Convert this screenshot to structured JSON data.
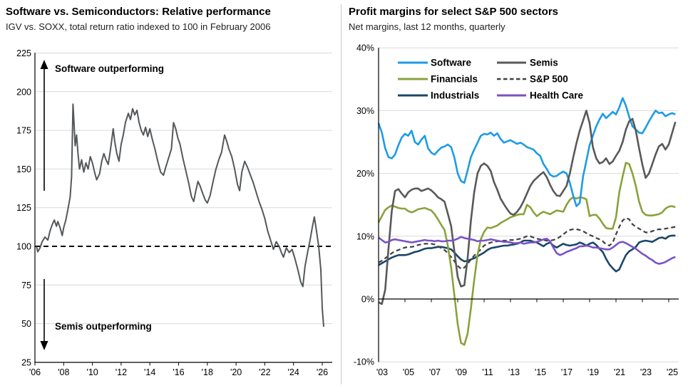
{
  "chart_data": [
    {
      "type": "line",
      "title": "Software vs. Semiconductors: Relative performance",
      "subtitle": "IGV vs. SOXX, total return ratio indexed to 100 in February 2006",
      "ylim": [
        25,
        225
      ],
      "xlim": [
        2006,
        2026.5
      ],
      "grid": true,
      "grid_values": [
        225,
        200,
        175,
        150,
        125,
        75,
        50
      ],
      "yticks": [
        225,
        200,
        175,
        150,
        125,
        100,
        75,
        50,
        25
      ],
      "xticks": [
        {
          "label": "'06",
          "year": 2006
        },
        {
          "label": "'08",
          "year": 2008
        },
        {
          "label": "'10",
          "year": 2010
        },
        {
          "label": "'12",
          "year": 2012
        },
        {
          "label": "'14",
          "year": 2014
        },
        {
          "label": "'16",
          "year": 2016
        },
        {
          "label": "'18",
          "year": 2018
        },
        {
          "label": "'20",
          "year": 2020
        },
        {
          "label": "'22",
          "year": 2022
        },
        {
          "label": "'24",
          "year": 2024
        },
        {
          "label": "'26",
          "year": 2026
        }
      ],
      "reference_line": {
        "value": 100,
        "style": "dashed",
        "color": "#000000"
      },
      "annotations": [
        {
          "text": "Software outperforming",
          "arrow": "up"
        },
        {
          "text": "Semis outperforming",
          "arrow": "down"
        }
      ],
      "series": [
        {
          "name": "IGV vs. SOXX total return ratio",
          "color": "#54585A",
          "x": [
            2006.1,
            2006.2,
            2006.35,
            2006.5,
            2006.7,
            2006.9,
            2007.05,
            2007.2,
            2007.35,
            2007.5,
            2007.6,
            2007.75,
            2007.9,
            2008.0,
            2008.15,
            2008.3,
            2008.45,
            2008.55,
            2008.65,
            2008.72,
            2008.8,
            2008.9,
            2009.0,
            2009.1,
            2009.25,
            2009.4,
            2009.55,
            2009.7,
            2009.85,
            2010.0,
            2010.15,
            2010.3,
            2010.5,
            2010.65,
            2010.8,
            2010.95,
            2011.1,
            2011.25,
            2011.45,
            2011.55,
            2011.7,
            2011.85,
            2012.0,
            2012.15,
            2012.3,
            2012.5,
            2012.65,
            2012.8,
            2012.95,
            2013.1,
            2013.25,
            2013.4,
            2013.55,
            2013.7,
            2013.85,
            2014.0,
            2014.15,
            2014.35,
            2014.55,
            2014.75,
            2014.95,
            2015.1,
            2015.3,
            2015.5,
            2015.65,
            2015.8,
            2015.95,
            2016.1,
            2016.3,
            2016.5,
            2016.7,
            2016.9,
            2017.05,
            2017.2,
            2017.35,
            2017.5,
            2017.65,
            2017.85,
            2018.0,
            2018.2,
            2018.4,
            2018.6,
            2018.8,
            2019.0,
            2019.2,
            2019.35,
            2019.5,
            2019.7,
            2019.9,
            2020.1,
            2020.25,
            2020.4,
            2020.6,
            2020.8,
            2021.0,
            2021.2,
            2021.4,
            2021.6,
            2021.8,
            2022.0,
            2022.2,
            2022.4,
            2022.6,
            2022.8,
            2023.0,
            2023.15,
            2023.3,
            2023.5,
            2023.7,
            2023.9,
            2024.1,
            2024.3,
            2024.5,
            2024.65,
            2024.8,
            2025.0,
            2025.15,
            2025.3,
            2025.45,
            2025.6,
            2025.75,
            2025.9,
            2026.0,
            2026.1
          ],
          "y": [
            100,
            96.5,
            99,
            103,
            106,
            104,
            110,
            114,
            117,
            113,
            116,
            112,
            107,
            112,
            117,
            124,
            132,
            145,
            192,
            180,
            165,
            172,
            160,
            150,
            156,
            148,
            154,
            150,
            158,
            154,
            148,
            143,
            147,
            155,
            160,
            156,
            153,
            162,
            176,
            168,
            160,
            155,
            166,
            172,
            180,
            186,
            182,
            189,
            185,
            188,
            180,
            175,
            172,
            177,
            171,
            176,
            170,
            163,
            155,
            148,
            146,
            151,
            157,
            163,
            180,
            176,
            170,
            166,
            157,
            149,
            141,
            132,
            129,
            136,
            142,
            139,
            135,
            130,
            128,
            133,
            142,
            150,
            156,
            161,
            172,
            168,
            163,
            158,
            150,
            140,
            136,
            148,
            155,
            151,
            146,
            141,
            135,
            129,
            124,
            118,
            110,
            104,
            98,
            103,
            100,
            96,
            93,
            99,
            96,
            98,
            92,
            85,
            77,
            74,
            87,
            97,
            104,
            112,
            119,
            110,
            100,
            85,
            60,
            48
          ]
        }
      ]
    },
    {
      "type": "line",
      "title": "Profit margins for select S&P 500 sectors",
      "subtitle": "Net margins, last 12 months, quarterly",
      "ylim": [
        -10,
        40
      ],
      "xlim": [
        2003,
        2025.75
      ],
      "grid": true,
      "grid_values": [
        40,
        30,
        20,
        10,
        -10
      ],
      "yticks": [
        {
          "label": "40%",
          "value": 40
        },
        {
          "label": "30%",
          "value": 30
        },
        {
          "label": "20%",
          "value": 20
        },
        {
          "label": "10%",
          "value": 10
        },
        {
          "label": "0%",
          "value": 0
        },
        {
          "label": "-10%",
          "value": -10
        }
      ],
      "xticks": [
        {
          "label": "'03",
          "year": 2003
        },
        {
          "label": "'05",
          "year": 2005
        },
        {
          "label": "'07",
          "year": 2007
        },
        {
          "label": "'09",
          "year": 2009
        },
        {
          "label": "'11",
          "year": 2011
        },
        {
          "label": "'13",
          "year": 2013
        },
        {
          "label": "'15",
          "year": 2015
        },
        {
          "label": "'17",
          "year": 2017
        },
        {
          "label": "'19",
          "year": 2019
        },
        {
          "label": "'21",
          "year": 2021
        },
        {
          "label": "'23",
          "year": 2023
        },
        {
          "label": "'25",
          "year": 2025
        }
      ],
      "x_start": 2003,
      "x_step": 0.25,
      "legend": {
        "position": "top-inside",
        "columns": [
          [
            "Software",
            "Financials",
            "Industrials"
          ],
          [
            "Semis",
            "S&P 500",
            "Health Care"
          ]
        ]
      },
      "draw_order": [
        4,
        3,
        2,
        0,
        1,
        5
      ],
      "series": [
        {
          "name": "Software",
          "color": "#1E9BE6",
          "dash": false,
          "values": [
            28.0,
            26.5,
            24.0,
            22.6,
            22.4,
            23.0,
            24.5,
            25.7,
            26.3,
            26.0,
            26.8,
            25.0,
            24.6,
            25.4,
            26.0,
            24.0,
            23.3,
            23.0,
            23.6,
            24.1,
            24.3,
            24.6,
            24.2,
            22.5,
            20.0,
            18.8,
            18.5,
            20.5,
            22.6,
            23.8,
            24.9,
            26.0,
            26.3,
            26.2,
            26.5,
            26.0,
            26.4,
            25.5,
            24.9,
            25.1,
            25.3,
            25.0,
            24.7,
            24.9,
            24.6,
            24.2,
            24.0,
            23.8,
            23.2,
            22.8,
            21.5,
            20.7,
            19.8,
            19.5,
            19.6,
            20.0,
            20.3,
            20.0,
            18.5,
            16.5,
            14.8,
            15.3,
            19.5,
            22.0,
            24.5,
            26.0,
            27.5,
            28.6,
            29.5,
            28.8,
            29.3,
            29.8,
            29.4,
            30.5,
            32.0,
            30.8,
            29.0,
            27.5,
            27.0,
            26.5,
            26.4,
            27.3,
            28.3,
            29.2,
            30.0,
            29.6,
            29.7,
            29.1,
            29.4,
            29.6,
            29.4
          ]
        },
        {
          "name": "Semis",
          "color": "#595959",
          "dash": false,
          "values": [
            -0.5,
            -0.8,
            1.5,
            8.0,
            14.0,
            17.2,
            17.5,
            16.8,
            16.2,
            17.0,
            17.4,
            17.6,
            17.6,
            17.2,
            17.4,
            17.6,
            17.3,
            16.8,
            16.2,
            15.9,
            15.5,
            13.6,
            11.6,
            7.5,
            3.5,
            2.0,
            2.2,
            6.5,
            12.5,
            17.0,
            20.0,
            21.2,
            21.6,
            21.2,
            20.4,
            18.6,
            17.4,
            16.0,
            15.1,
            14.3,
            13.6,
            13.4,
            13.9,
            14.6,
            15.6,
            16.8,
            18.0,
            18.8,
            19.3,
            19.8,
            20.2,
            19.4,
            18.2,
            17.2,
            16.5,
            16.4,
            17.2,
            18.0,
            20.0,
            22.5,
            24.8,
            26.8,
            28.4,
            30.0,
            28.0,
            24.2,
            22.4,
            21.6,
            21.8,
            22.4,
            21.5,
            21.9,
            22.8,
            23.6,
            25.0,
            27.0,
            28.3,
            28.7,
            26.8,
            24.0,
            21.4,
            19.3,
            20.0,
            21.5,
            23.0,
            24.3,
            24.7,
            23.8,
            24.6,
            26.4,
            28.2
          ]
        },
        {
          "name": "Financials",
          "color": "#8AA23B",
          "dash": false,
          "values": [
            12.2,
            13.2,
            14.2,
            14.6,
            14.9,
            14.7,
            14.5,
            14.4,
            14.4,
            14.0,
            13.8,
            14.0,
            14.3,
            14.4,
            14.5,
            14.3,
            14.1,
            13.5,
            12.7,
            11.8,
            11.0,
            8.5,
            5.0,
            0.5,
            -4.0,
            -7.0,
            -7.3,
            -5.5,
            -1.5,
            3.0,
            7.0,
            9.5,
            10.7,
            11.4,
            11.3,
            11.5,
            11.7,
            12.1,
            12.4,
            12.7,
            13.0,
            13.2,
            13.4,
            13.5,
            13.5,
            15.0,
            14.6,
            13.8,
            13.2,
            13.6,
            13.9,
            13.7,
            13.5,
            13.8,
            14.1,
            14.0,
            13.9,
            15.0,
            15.8,
            16.2,
            16.0,
            16.2,
            16.1,
            15.9,
            13.2,
            13.4,
            13.4,
            12.8,
            12.0,
            11.3,
            11.2,
            11.2,
            13.0,
            17.0,
            19.5,
            21.7,
            21.5,
            20.0,
            18.0,
            15.5,
            13.9,
            13.4,
            13.3,
            13.3,
            13.4,
            13.5,
            13.8,
            14.4,
            14.7,
            14.8,
            14.6
          ]
        },
        {
          "name": "S&P 500",
          "color": "#404040",
          "dash": true,
          "values": [
            5.8,
            6.1,
            6.5,
            6.9,
            7.3,
            7.6,
            7.8,
            8.0,
            8.2,
            8.3,
            8.3,
            8.4,
            8.6,
            8.7,
            8.8,
            8.8,
            8.8,
            8.7,
            8.4,
            8.1,
            7.8,
            7.3,
            6.7,
            6.0,
            5.3,
            4.8,
            5.0,
            5.6,
            6.3,
            6.9,
            7.4,
            7.9,
            8.5,
            8.8,
            9.0,
            9.1,
            9.2,
            9.2,
            9.3,
            9.3,
            9.4,
            9.4,
            9.5,
            9.6,
            9.8,
            10.0,
            10.0,
            9.8,
            9.6,
            9.5,
            9.4,
            9.3,
            9.3,
            9.4,
            9.6,
            9.9,
            10.3,
            10.7,
            11.0,
            11.1,
            11.1,
            11.0,
            10.8,
            10.5,
            10.2,
            10.0,
            9.7,
            9.5,
            9.2,
            8.7,
            8.5,
            9.0,
            10.3,
            11.5,
            12.5,
            12.9,
            12.7,
            11.9,
            11.5,
            11.2,
            10.9,
            10.6,
            10.6,
            10.8,
            11.0,
            11.1,
            11.1,
            11.2,
            11.3,
            11.4,
            11.5
          ]
        },
        {
          "name": "Industrials",
          "color": "#1B4769",
          "dash": false,
          "values": [
            5.4,
            5.7,
            6.0,
            6.3,
            6.6,
            6.8,
            7.0,
            7.0,
            7.0,
            7.1,
            7.3,
            7.5,
            7.6,
            7.8,
            8.0,
            8.1,
            8.1,
            8.2,
            8.3,
            8.3,
            8.2,
            8.1,
            7.9,
            7.4,
            6.8,
            6.3,
            6.0,
            6.1,
            6.3,
            6.5,
            6.8,
            7.1,
            7.4,
            7.8,
            8.1,
            8.2,
            8.3,
            8.4,
            8.5,
            8.5,
            8.6,
            8.7,
            8.8,
            9.0,
            9.3,
            9.3,
            9.3,
            9.1,
            9.0,
            8.7,
            8.4,
            8.8,
            9.0,
            8.5,
            8.2,
            8.5,
            8.8,
            8.6,
            8.5,
            8.6,
            8.7,
            9.0,
            8.8,
            8.5,
            8.8,
            9.0,
            8.6,
            8.0,
            7.5,
            6.4,
            5.5,
            4.9,
            4.4,
            4.7,
            5.9,
            7.0,
            7.6,
            7.9,
            8.3,
            9.0,
            9.2,
            9.3,
            9.2,
            9.1,
            9.4,
            9.7,
            9.8,
            9.6,
            10.0,
            10.1,
            10.1
          ]
        },
        {
          "name": "Health Care",
          "color": "#7A52C8",
          "dash": false,
          "values": [
            9.8,
            9.4,
            9.0,
            9.1,
            9.4,
            9.5,
            9.4,
            9.3,
            9.2,
            9.1,
            9.0,
            9.1,
            9.2,
            9.3,
            9.4,
            9.3,
            9.3,
            9.2,
            9.3,
            9.2,
            9.2,
            9.3,
            9.3,
            9.4,
            9.6,
            9.9,
            9.7,
            9.6,
            9.5,
            9.4,
            9.2,
            9.3,
            9.3,
            9.4,
            9.5,
            9.4,
            9.3,
            9.2,
            9.1,
            9.1,
            9.0,
            8.9,
            8.9,
            9.0,
            8.8,
            8.9,
            9.0,
            9.0,
            9.1,
            9.3,
            9.5,
            9.6,
            9.2,
            8.2,
            7.3,
            7.0,
            7.2,
            7.5,
            7.7,
            7.9,
            8.1,
            8.4,
            8.4,
            8.5,
            8.4,
            8.2,
            8.2,
            8.1,
            8.0,
            7.9,
            7.9,
            8.2,
            8.6,
            9.0,
            9.1,
            8.9,
            8.6,
            8.3,
            8.0,
            7.6,
            7.2,
            6.9,
            6.5,
            6.2,
            5.8,
            5.6,
            5.7,
            5.9,
            6.2,
            6.5,
            6.7
          ]
        }
      ]
    }
  ]
}
